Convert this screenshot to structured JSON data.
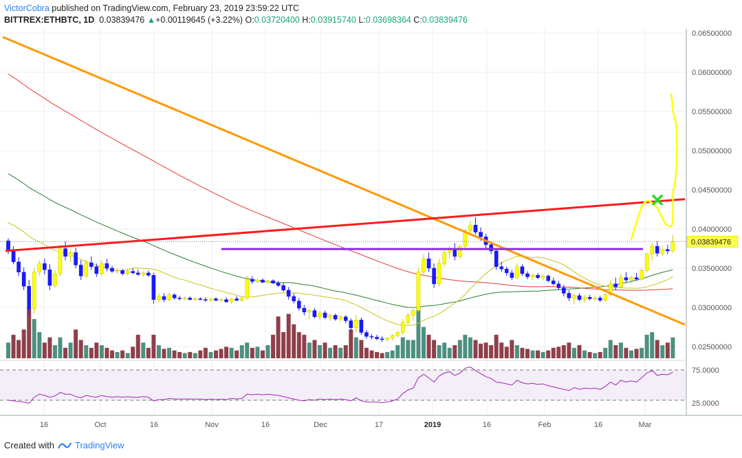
{
  "header": {
    "author": "VictorCobra",
    "published": "published on TradingView.com, February 23, 2019 23:59:22 UTC",
    "symbol": "BITTREX:ETHBTC, 1D",
    "last": "0.03839476",
    "change": "+0.00119645 (+3.22%)",
    "o_label": "O:",
    "o": "0.03720400",
    "h_label": "H:",
    "h": "0.03915740",
    "l_label": "L:",
    "l": "0.03698364",
    "c_label": "C:",
    "c": "0.03839476"
  },
  "footer": {
    "created": "Created with",
    "brand": "TradingView"
  },
  "chart_data": {
    "type": "candlestick",
    "symbol": "BITTREX:ETHBTC",
    "interval": "1D",
    "y_axis": {
      "ticks": [
        "0.06500000",
        "0.06000000",
        "0.05500000",
        "0.05000000",
        "0.04500000",
        "0.04000000",
        "0.03500000",
        "0.03000000",
        "0.02500000"
      ],
      "range": [
        0.0236,
        0.0655
      ]
    },
    "x_axis": {
      "labels": [
        "16",
        "Oct",
        "16",
        "Nov",
        "16",
        "Dec",
        "17",
        "2019",
        "16",
        "Feb",
        "16",
        "Mar"
      ]
    },
    "price_label": "0.03839476",
    "rsi_panel": {
      "levels": [
        "75.0000",
        "25.0000"
      ]
    },
    "colors": {
      "up": "#ffff00",
      "down": "#1a1aff",
      "vol_up": "#2e7d68",
      "vol_down": "#7a1f2a",
      "ma_red": "#e53935",
      "ma_green": "#2e7d32",
      "ma_yellow": "#c6c61a",
      "trend_orange": "#ff9800",
      "trend_red": "#ff1a1a",
      "horizontal": "#8a2be2",
      "projection": "#ffff00",
      "target_mark": "#22dd22",
      "rsi_line": "#9c27b0"
    },
    "candles": [
      [
        0.0385,
        0.0388,
        0.0368,
        0.0372
      ],
      [
        0.0372,
        0.0378,
        0.0355,
        0.0358
      ],
      [
        0.0358,
        0.0364,
        0.034,
        0.0345
      ],
      [
        0.0345,
        0.0351,
        0.0322,
        0.0327
      ],
      [
        0.0327,
        0.0335,
        0.029,
        0.0298
      ],
      [
        0.0298,
        0.035,
        0.0292,
        0.0345
      ],
      [
        0.0345,
        0.036,
        0.034,
        0.0356
      ],
      [
        0.0356,
        0.0362,
        0.0342,
        0.0348
      ],
      [
        0.0348,
        0.0355,
        0.0322,
        0.0328
      ],
      [
        0.0328,
        0.0348,
        0.0325,
        0.0343
      ],
      [
        0.0343,
        0.038,
        0.034,
        0.0375
      ],
      [
        0.0375,
        0.0384,
        0.036,
        0.0365
      ],
      [
        0.0365,
        0.0374,
        0.0358,
        0.037
      ],
      [
        0.037,
        0.0376,
        0.035,
        0.0354
      ],
      [
        0.0354,
        0.036,
        0.0335,
        0.034
      ],
      [
        0.034,
        0.036,
        0.0338,
        0.0357
      ],
      [
        0.0357,
        0.0365,
        0.0348,
        0.0352
      ],
      [
        0.0352,
        0.0356,
        0.0339,
        0.0343
      ],
      [
        0.0343,
        0.036,
        0.034,
        0.0356
      ],
      [
        0.0356,
        0.0362,
        0.0346,
        0.035
      ],
      [
        0.035,
        0.0353,
        0.0344,
        0.0346
      ],
      [
        0.0346,
        0.035,
        0.0343,
        0.0347
      ],
      [
        0.0347,
        0.0349,
        0.0341,
        0.0343
      ],
      [
        0.0343,
        0.0349,
        0.0341,
        0.0346
      ],
      [
        0.0346,
        0.035,
        0.0342,
        0.0344
      ],
      [
        0.0344,
        0.0348,
        0.034,
        0.0342
      ],
      [
        0.0342,
        0.0346,
        0.0339,
        0.0344
      ],
      [
        0.0344,
        0.0347,
        0.0339,
        0.0341
      ],
      [
        0.0341,
        0.0344,
        0.0305,
        0.031
      ],
      [
        0.031,
        0.0318,
        0.0306,
        0.0314
      ],
      [
        0.0314,
        0.0318,
        0.0307,
        0.031
      ],
      [
        0.031,
        0.0319,
        0.0308,
        0.0316
      ],
      [
        0.0316,
        0.0318,
        0.031,
        0.0312
      ],
      [
        0.0312,
        0.0315,
        0.0309,
        0.0311
      ],
      [
        0.0311,
        0.0314,
        0.0309,
        0.0312
      ],
      [
        0.0312,
        0.0314,
        0.0309,
        0.031
      ],
      [
        0.031,
        0.0313,
        0.0308,
        0.0311
      ],
      [
        0.0311,
        0.0313,
        0.0309,
        0.031
      ],
      [
        0.031,
        0.0313,
        0.0307,
        0.0309
      ],
      [
        0.0309,
        0.0312,
        0.0307,
        0.0311
      ],
      [
        0.0311,
        0.0313,
        0.0308,
        0.0309
      ],
      [
        0.0309,
        0.0312,
        0.0307,
        0.031
      ],
      [
        0.031,
        0.0313,
        0.0306,
        0.0307
      ],
      [
        0.0307,
        0.0312,
        0.0305,
        0.0311
      ],
      [
        0.0311,
        0.0314,
        0.0308,
        0.0309
      ],
      [
        0.0309,
        0.0314,
        0.0307,
        0.0312
      ],
      [
        0.0312,
        0.034,
        0.031,
        0.0336
      ],
      [
        0.0336,
        0.034,
        0.033,
        0.0333
      ],
      [
        0.0333,
        0.0337,
        0.033,
        0.0335
      ],
      [
        0.0335,
        0.0337,
        0.0331,
        0.0332
      ],
      [
        0.0332,
        0.0335,
        0.033,
        0.0334
      ],
      [
        0.0334,
        0.0336,
        0.033,
        0.0331
      ],
      [
        0.0331,
        0.0334,
        0.0326,
        0.0328
      ],
      [
        0.0328,
        0.0332,
        0.032,
        0.0322
      ],
      [
        0.0322,
        0.0326,
        0.031,
        0.0314
      ],
      [
        0.0314,
        0.0318,
        0.0305,
        0.0308
      ],
      [
        0.0308,
        0.0312,
        0.0296,
        0.0299
      ],
      [
        0.0299,
        0.0303,
        0.029,
        0.0294
      ],
      [
        0.0294,
        0.0298,
        0.0285,
        0.0296
      ],
      [
        0.0296,
        0.0299,
        0.0286,
        0.0288
      ],
      [
        0.0288,
        0.0296,
        0.0284,
        0.0293
      ],
      [
        0.0293,
        0.0296,
        0.0285,
        0.0287
      ],
      [
        0.0287,
        0.0292,
        0.0283,
        0.029
      ],
      [
        0.029,
        0.0292,
        0.0283,
        0.0285
      ],
      [
        0.0285,
        0.029,
        0.0282,
        0.0288
      ],
      [
        0.0288,
        0.029,
        0.028,
        0.0283
      ],
      [
        0.0283,
        0.0286,
        0.027,
        0.0274
      ],
      [
        0.0274,
        0.029,
        0.0268,
        0.0284
      ],
      [
        0.0284,
        0.0287,
        0.0265,
        0.0268
      ],
      [
        0.0268,
        0.0271,
        0.026,
        0.0263
      ],
      [
        0.0263,
        0.0266,
        0.0259,
        0.0262
      ],
      [
        0.0262,
        0.0265,
        0.0258,
        0.026
      ],
      [
        0.026,
        0.0263,
        0.0256,
        0.0259
      ],
      [
        0.0259,
        0.0262,
        0.0256,
        0.0261
      ],
      [
        0.0261,
        0.0266,
        0.0258,
        0.0264
      ],
      [
        0.0264,
        0.027,
        0.0262,
        0.0268
      ],
      [
        0.0268,
        0.0285,
        0.0265,
        0.0281
      ],
      [
        0.0281,
        0.0293,
        0.0278,
        0.029
      ],
      [
        0.029,
        0.0298,
        0.0283,
        0.0296
      ],
      [
        0.0296,
        0.035,
        0.0294,
        0.0345
      ],
      [
        0.0345,
        0.0368,
        0.034,
        0.0362
      ],
      [
        0.0362,
        0.037,
        0.0345,
        0.035
      ],
      [
        0.035,
        0.0356,
        0.0325,
        0.033
      ],
      [
        0.033,
        0.0362,
        0.0326,
        0.0356
      ],
      [
        0.0356,
        0.0374,
        0.0352,
        0.037
      ],
      [
        0.037,
        0.0378,
        0.0362,
        0.0375
      ],
      [
        0.0375,
        0.0382,
        0.036,
        0.0365
      ],
      [
        0.0365,
        0.038,
        0.0362,
        0.0378
      ],
      [
        0.0378,
        0.04,
        0.0375,
        0.0398
      ],
      [
        0.0398,
        0.041,
        0.0392,
        0.0405
      ],
      [
        0.0405,
        0.0415,
        0.0393,
        0.0396
      ],
      [
        0.0396,
        0.0402,
        0.0385,
        0.039
      ],
      [
        0.039,
        0.0394,
        0.0375,
        0.038
      ],
      [
        0.038,
        0.0384,
        0.0368,
        0.0372
      ],
      [
        0.0372,
        0.0374,
        0.0348,
        0.0352
      ],
      [
        0.0352,
        0.0358,
        0.0345,
        0.0349
      ],
      [
        0.0349,
        0.0352,
        0.034,
        0.0344
      ],
      [
        0.0344,
        0.0348,
        0.0335,
        0.0338
      ],
      [
        0.0338,
        0.0356,
        0.0336,
        0.0352
      ],
      [
        0.0352,
        0.0355,
        0.034,
        0.0343
      ],
      [
        0.0343,
        0.0346,
        0.0336,
        0.0339
      ],
      [
        0.0339,
        0.0343,
        0.0335,
        0.0341
      ],
      [
        0.0341,
        0.0344,
        0.0336,
        0.0338
      ],
      [
        0.0338,
        0.0342,
        0.0334,
        0.034
      ],
      [
        0.034,
        0.0342,
        0.0332,
        0.0334
      ],
      [
        0.0334,
        0.0338,
        0.0328,
        0.033
      ],
      [
        0.033,
        0.0334,
        0.0322,
        0.0325
      ],
      [
        0.0325,
        0.0329,
        0.0314,
        0.0318
      ],
      [
        0.0318,
        0.0322,
        0.0308,
        0.0312
      ],
      [
        0.0312,
        0.0318,
        0.0304,
        0.0315
      ],
      [
        0.0315,
        0.0318,
        0.0308,
        0.031
      ],
      [
        0.031,
        0.0316,
        0.0306,
        0.0313
      ],
      [
        0.0313,
        0.0316,
        0.0309,
        0.0311
      ],
      [
        0.0311,
        0.0315,
        0.0308,
        0.0312
      ],
      [
        0.0312,
        0.0315,
        0.0307,
        0.0309
      ],
      [
        0.0309,
        0.0318,
        0.0307,
        0.0316
      ],
      [
        0.0316,
        0.0335,
        0.0314,
        0.033
      ],
      [
        0.033,
        0.0338,
        0.0322,
        0.0326
      ],
      [
        0.0326,
        0.0342,
        0.0324,
        0.0338
      ],
      [
        0.0338,
        0.0345,
        0.0332,
        0.0335
      ],
      [
        0.0335,
        0.034,
        0.033,
        0.0338
      ],
      [
        0.0338,
        0.0344,
        0.0334,
        0.0336
      ],
      [
        0.0336,
        0.035,
        0.0334,
        0.0347
      ],
      [
        0.0347,
        0.037,
        0.0345,
        0.0368
      ],
      [
        0.0368,
        0.0382,
        0.036,
        0.0378
      ],
      [
        0.0378,
        0.0384,
        0.0365,
        0.0369
      ],
      [
        0.0369,
        0.0378,
        0.0366,
        0.0374
      ],
      [
        0.0374,
        0.038,
        0.0368,
        0.0372
      ],
      [
        0.0372,
        0.0392,
        0.037,
        0.0384
      ]
    ],
    "volumes": [
      [
        0.3,
        1
      ],
      [
        0.45,
        0
      ],
      [
        0.35,
        0
      ],
      [
        0.55,
        0
      ],
      [
        0.95,
        0
      ],
      [
        0.75,
        1
      ],
      [
        0.5,
        1
      ],
      [
        0.3,
        0
      ],
      [
        0.4,
        0
      ],
      [
        0.25,
        1
      ],
      [
        0.4,
        1
      ],
      [
        0.2,
        0
      ],
      [
        0.3,
        1
      ],
      [
        0.55,
        0
      ],
      [
        0.35,
        0
      ],
      [
        0.25,
        1
      ],
      [
        0.2,
        0
      ],
      [
        0.3,
        0
      ],
      [
        0.25,
        1
      ],
      [
        0.2,
        0
      ],
      [
        0.15,
        0
      ],
      [
        0.12,
        1
      ],
      [
        0.15,
        0
      ],
      [
        0.1,
        1
      ],
      [
        0.22,
        0
      ],
      [
        0.45,
        0
      ],
      [
        0.3,
        1
      ],
      [
        0.2,
        0
      ],
      [
        0.45,
        0
      ],
      [
        0.25,
        1
      ],
      [
        0.18,
        0
      ],
      [
        0.2,
        1
      ],
      [
        0.15,
        0
      ],
      [
        0.12,
        0
      ],
      [
        0.1,
        1
      ],
      [
        0.12,
        0
      ],
      [
        0.1,
        1
      ],
      [
        0.15,
        0
      ],
      [
        0.2,
        0
      ],
      [
        0.12,
        1
      ],
      [
        0.15,
        0
      ],
      [
        0.18,
        0
      ],
      [
        0.22,
        0
      ],
      [
        0.2,
        1
      ],
      [
        0.15,
        0
      ],
      [
        0.25,
        1
      ],
      [
        0.3,
        1
      ],
      [
        0.2,
        0
      ],
      [
        0.22,
        1
      ],
      [
        0.15,
        0
      ],
      [
        0.25,
        1
      ],
      [
        0.45,
        0
      ],
      [
        0.8,
        0
      ],
      [
        0.5,
        0
      ],
      [
        0.85,
        0
      ],
      [
        0.65,
        0
      ],
      [
        0.5,
        0
      ],
      [
        0.45,
        0
      ],
      [
        0.3,
        1
      ],
      [
        0.35,
        0
      ],
      [
        0.25,
        1
      ],
      [
        0.3,
        0
      ],
      [
        0.2,
        1
      ],
      [
        0.25,
        0
      ],
      [
        0.2,
        1
      ],
      [
        0.25,
        0
      ],
      [
        0.55,
        0
      ],
      [
        0.4,
        1
      ],
      [
        0.35,
        0
      ],
      [
        0.2,
        0
      ],
      [
        0.15,
        0
      ],
      [
        0.12,
        0
      ],
      [
        0.1,
        0
      ],
      [
        0.12,
        1
      ],
      [
        0.15,
        1
      ],
      [
        0.25,
        1
      ],
      [
        0.4,
        1
      ],
      [
        0.35,
        1
      ],
      [
        0.35,
        1
      ],
      [
        1.0,
        1
      ],
      [
        0.6,
        1
      ],
      [
        0.45,
        0
      ],
      [
        0.35,
        0
      ],
      [
        0.25,
        1
      ],
      [
        0.3,
        1
      ],
      [
        0.2,
        1
      ],
      [
        0.25,
        0
      ],
      [
        0.35,
        1
      ],
      [
        0.45,
        1
      ],
      [
        0.4,
        1
      ],
      [
        0.35,
        0
      ],
      [
        0.28,
        0
      ],
      [
        0.3,
        0
      ],
      [
        0.25,
        0
      ],
      [
        0.45,
        0
      ],
      [
        0.3,
        0
      ],
      [
        0.22,
        0
      ],
      [
        0.35,
        0
      ],
      [
        0.25,
        1
      ],
      [
        0.2,
        0
      ],
      [
        0.18,
        0
      ],
      [
        0.15,
        1
      ],
      [
        0.15,
        0
      ],
      [
        0.12,
        1
      ],
      [
        0.15,
        0
      ],
      [
        0.2,
        0
      ],
      [
        0.22,
        0
      ],
      [
        0.25,
        0
      ],
      [
        0.3,
        0
      ],
      [
        0.2,
        1
      ],
      [
        0.25,
        0
      ],
      [
        0.15,
        1
      ],
      [
        0.12,
        0
      ],
      [
        0.1,
        1
      ],
      [
        0.12,
        0
      ],
      [
        0.2,
        1
      ],
      [
        0.35,
        1
      ],
      [
        0.25,
        0
      ],
      [
        0.3,
        1
      ],
      [
        0.2,
        0
      ],
      [
        0.15,
        1
      ],
      [
        0.18,
        0
      ],
      [
        0.2,
        1
      ],
      [
        0.45,
        1
      ],
      [
        0.5,
        1
      ],
      [
        0.35,
        0
      ],
      [
        0.25,
        1
      ],
      [
        0.3,
        0
      ],
      [
        0.4,
        1
      ]
    ],
    "rsi": [
      25,
      24,
      23,
      22,
      20,
      30,
      35,
      33,
      30,
      32,
      38,
      35,
      35,
      31,
      29,
      33,
      31,
      30,
      33,
      31,
      30,
      31,
      30,
      31,
      30,
      30,
      31,
      30,
      24,
      26,
      26,
      28,
      27,
      27,
      27,
      27,
      27,
      27,
      26,
      27,
      26,
      27,
      26,
      28,
      27,
      28,
      35,
      34,
      35,
      34,
      35,
      34,
      33,
      31,
      29,
      27,
      25,
      24,
      26,
      25,
      27,
      26,
      27,
      26,
      27,
      26,
      24,
      29,
      24,
      22,
      22,
      22,
      21,
      22,
      24,
      27,
      36,
      42,
      45,
      62,
      68,
      62,
      55,
      65,
      70,
      72,
      66,
      70,
      78,
      80,
      74,
      69,
      64,
      61,
      55,
      54,
      52,
      50,
      58,
      54,
      52,
      53,
      51,
      52,
      49,
      47,
      45,
      43,
      41,
      46,
      43,
      45,
      44,
      45,
      43,
      48,
      55,
      50,
      58,
      55,
      57,
      55,
      62,
      70,
      74,
      66,
      68,
      67,
      71
    ]
  }
}
